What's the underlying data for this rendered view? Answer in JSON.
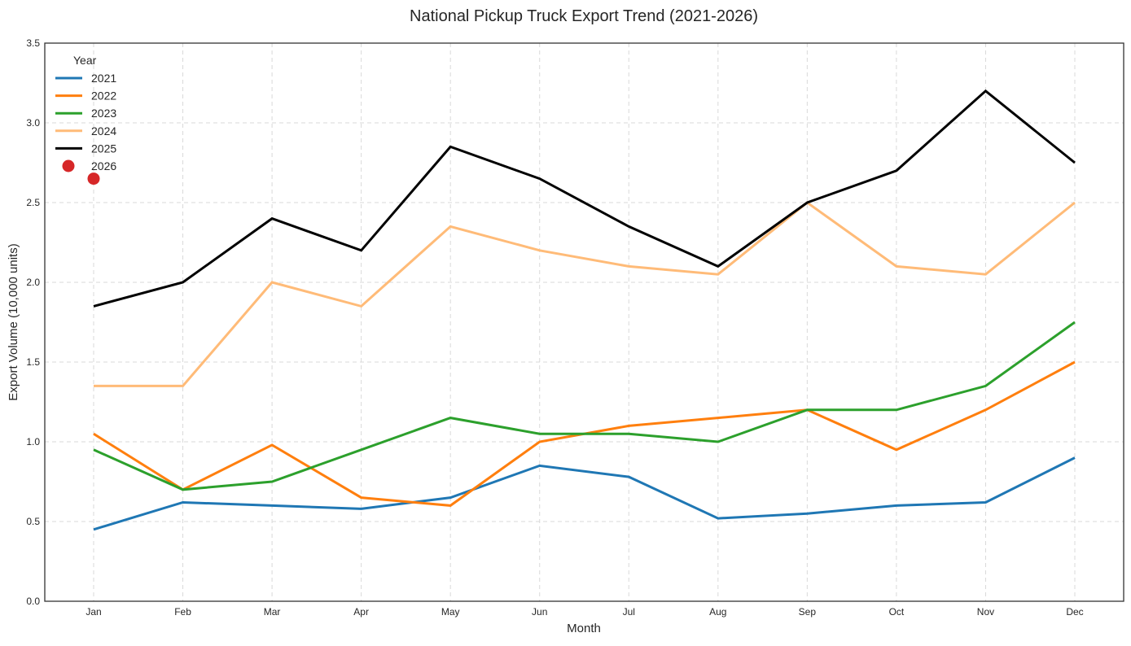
{
  "chart_data": {
    "type": "line",
    "title": "National Pickup Truck Export Trend (2021-2026)",
    "xlabel": "Month",
    "ylabel": "Export Volume (10,000 units)",
    "categories": [
      "Jan",
      "Feb",
      "Mar",
      "Apr",
      "May",
      "Jun",
      "Jul",
      "Aug",
      "Sep",
      "Oct",
      "Nov",
      "Dec"
    ],
    "ylim": [
      0,
      3.5
    ],
    "yticks": [
      "0.0",
      "0.5",
      "1.0",
      "1.5",
      "2.0",
      "2.5",
      "3.0",
      "3.5"
    ],
    "grid": true,
    "legend": {
      "title": "Year",
      "placement": "top-left"
    },
    "series": [
      {
        "name": "2021",
        "color": "#1f77b4",
        "marker": "line",
        "values": [
          0.45,
          0.62,
          0.6,
          0.58,
          0.65,
          0.85,
          0.78,
          0.52,
          0.55,
          0.6,
          0.62,
          0.9
        ]
      },
      {
        "name": "2022",
        "color": "#ff7f0e",
        "marker": "line",
        "values": [
          1.05,
          0.7,
          0.98,
          0.65,
          0.6,
          1.0,
          1.1,
          1.15,
          1.2,
          0.95,
          1.2,
          1.5
        ]
      },
      {
        "name": "2023",
        "color": "#2ca02c",
        "marker": "line",
        "values": [
          0.95,
          0.7,
          0.75,
          0.95,
          1.15,
          1.05,
          1.05,
          1.0,
          1.2,
          1.2,
          1.35,
          1.75
        ]
      },
      {
        "name": "2024",
        "color": "#ffbb78",
        "marker": "line",
        "values": [
          1.35,
          1.35,
          2.0,
          1.85,
          2.35,
          2.2,
          2.1,
          2.05,
          2.5,
          2.1,
          2.05,
          2.5
        ]
      },
      {
        "name": "2025",
        "color": "#000000",
        "marker": "line",
        "values": [
          1.85,
          2.0,
          2.4,
          2.2,
          2.85,
          2.65,
          2.35,
          2.1,
          2.5,
          2.7,
          3.2,
          2.75
        ]
      },
      {
        "name": "2026",
        "color": "#d62728",
        "marker": "dot",
        "values": [
          2.65,
          null,
          null,
          null,
          null,
          null,
          null,
          null,
          null,
          null,
          null,
          null
        ]
      }
    ]
  }
}
